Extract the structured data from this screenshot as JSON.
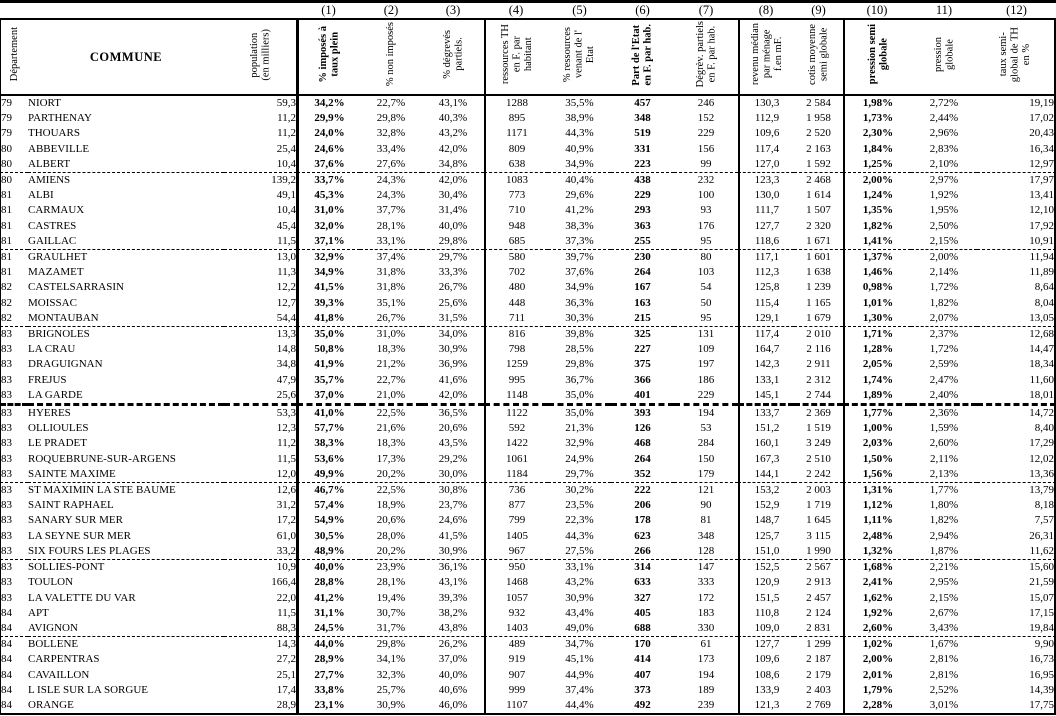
{
  "table": {
    "columns": [
      {
        "num": "",
        "label": "Département",
        "rot": true,
        "bold": false
      },
      {
        "num": "",
        "label": "COMMUNE",
        "rot": false,
        "bold": true
      },
      {
        "num": "",
        "label": "population\n(en milliers)",
        "rot": true,
        "bold": false
      },
      {
        "num": "(1)",
        "label": "% imposés à\ntaux plein",
        "rot": true,
        "bold": true
      },
      {
        "num": "(2)",
        "label": "% non imposés",
        "rot": true,
        "bold": false
      },
      {
        "num": "(3)",
        "label": "% dégrevés\npartiels.",
        "rot": true,
        "bold": false
      },
      {
        "num": "(4)",
        "label": "ressources TH\nen F. par\nhabitant",
        "rot": true,
        "bold": false
      },
      {
        "num": "(5)",
        "label": "% ressources\nvenant de l'\nEtat",
        "rot": true,
        "bold": false
      },
      {
        "num": "(6)",
        "label": "Part de l'Etat\nen F. par hab.",
        "rot": true,
        "bold": true
      },
      {
        "num": "(7)",
        "label": "Dégrèv. partiels\nen F. par hab.",
        "rot": true,
        "bold": false
      },
      {
        "num": "(8)",
        "label": "revenu médian\npar ménage\nf.en mF.",
        "rot": true,
        "bold": false
      },
      {
        "num": "(9)",
        "label": "cotis moyenne\nsemi globale",
        "rot": true,
        "bold": false
      },
      {
        "num": "(10)",
        "label": "pression semi\nglobale",
        "rot": true,
        "bold": true
      },
      {
        "num": "11)",
        "label": "pression\nglobale",
        "rot": true,
        "bold": false
      },
      {
        "num": "(12)",
        "label": "taux semi-\nglobal de TH\nen %",
        "rot": true,
        "bold": false
      }
    ],
    "bold_value_columns": [
      3,
      8,
      12
    ],
    "rows": [
      [
        "79",
        "NIORT",
        "59,3",
        "34,2%",
        "22,7%",
        "43,1%",
        "1288",
        "35,5%",
        "457",
        "246",
        "130,3",
        "2 584",
        "1,98%",
        "2,72%",
        "19,19"
      ],
      [
        "79",
        "PARTHENAY",
        "11,2",
        "29,9%",
        "29,8%",
        "40,3%",
        "895",
        "38,9%",
        "348",
        "152",
        "112,9",
        "1 958",
        "1,73%",
        "2,44%",
        "17,02"
      ],
      [
        "79",
        "THOUARS",
        "11,2",
        "24,0%",
        "32,8%",
        "43,2%",
        "1171",
        "44,3%",
        "519",
        "229",
        "109,6",
        "2 520",
        "2,30%",
        "2,96%",
        "20,43"
      ],
      [
        "80",
        "ABBEVILLE",
        "25,4",
        "24,6%",
        "33,4%",
        "42,0%",
        "809",
        "40,9%",
        "331",
        "156",
        "117,4",
        "2 163",
        "1,84%",
        "2,83%",
        "16,34"
      ],
      [
        "80",
        "ALBERT",
        "10,4",
        "37,6%",
        "27,6%",
        "34,8%",
        "638",
        "34,9%",
        "223",
        "99",
        "127,0",
        "1 592",
        "1,25%",
        "2,10%",
        "12,97"
      ],
      [
        "80",
        "AMIENS",
        "139,2",
        "33,7%",
        "24,3%",
        "42,0%",
        "1083",
        "40,4%",
        "438",
        "232",
        "123,3",
        "2 468",
        "2,00%",
        "2,97%",
        "17,97"
      ],
      [
        "81",
        "ALBI",
        "49,1",
        "45,3%",
        "24,3%",
        "30,4%",
        "773",
        "29,6%",
        "229",
        "100",
        "130,0",
        "1 614",
        "1,24%",
        "1,92%",
        "13,41"
      ],
      [
        "81",
        "CARMAUX",
        "10,4",
        "31,0%",
        "37,7%",
        "31,4%",
        "710",
        "41,2%",
        "293",
        "93",
        "111,7",
        "1 507",
        "1,35%",
        "1,95%",
        "12,10"
      ],
      [
        "81",
        "CASTRES",
        "45,4",
        "32,0%",
        "28,1%",
        "40,0%",
        "948",
        "38,3%",
        "363",
        "176",
        "127,7",
        "2 320",
        "1,82%",
        "2,50%",
        "17,92"
      ],
      [
        "81",
        "GAILLAC",
        "11,5",
        "37,1%",
        "33,1%",
        "29,8%",
        "685",
        "37,3%",
        "255",
        "95",
        "118,6",
        "1 671",
        "1,41%",
        "2,15%",
        "10,91"
      ],
      [
        "81",
        "GRAULHET",
        "13,0",
        "32,9%",
        "37,4%",
        "29,7%",
        "580",
        "39,7%",
        "230",
        "80",
        "117,1",
        "1 601",
        "1,37%",
        "2,00%",
        "11,94"
      ],
      [
        "81",
        "MAZAMET",
        "11,3",
        "34,9%",
        "31,8%",
        "33,3%",
        "702",
        "37,6%",
        "264",
        "103",
        "112,3",
        "1 638",
        "1,46%",
        "2,14%",
        "11,89"
      ],
      [
        "82",
        "CASTELSARRASIN",
        "12,2",
        "41,5%",
        "31,8%",
        "26,7%",
        "480",
        "34,9%",
        "167",
        "54",
        "125,8",
        "1 239",
        "0,98%",
        "1,72%",
        "8,64"
      ],
      [
        "82",
        "MOISSAC",
        "12,7",
        "39,3%",
        "35,1%",
        "25,6%",
        "448",
        "36,3%",
        "163",
        "50",
        "115,4",
        "1 165",
        "1,01%",
        "1,82%",
        "8,04"
      ],
      [
        "82",
        "MONTAUBAN",
        "54,4",
        "41,8%",
        "26,7%",
        "31,5%",
        "711",
        "30,3%",
        "215",
        "95",
        "129,1",
        "1 679",
        "1,30%",
        "2,07%",
        "13,05"
      ],
      [
        "83",
        "BRIGNOLES",
        "13,3",
        "35,0%",
        "31,0%",
        "34,0%",
        "816",
        "39,8%",
        "325",
        "131",
        "117,4",
        "2 010",
        "1,71%",
        "2,37%",
        "12,68"
      ],
      [
        "83",
        "LA CRAU",
        "14,8",
        "50,8%",
        "18,3%",
        "30,9%",
        "798",
        "28,5%",
        "227",
        "109",
        "164,7",
        "2 116",
        "1,28%",
        "1,72%",
        "14,47"
      ],
      [
        "83",
        "DRAGUIGNAN",
        "34,8",
        "41,9%",
        "21,2%",
        "36,9%",
        "1259",
        "29,8%",
        "375",
        "197",
        "142,3",
        "2 911",
        "2,05%",
        "2,59%",
        "18,34"
      ],
      [
        "83",
        "FREJUS",
        "47,9",
        "35,7%",
        "22,7%",
        "41,6%",
        "995",
        "36,7%",
        "366",
        "186",
        "133,1",
        "2 312",
        "1,74%",
        "2,47%",
        "11,60"
      ],
      [
        "83",
        "LA GARDE",
        "25,6",
        "37,0%",
        "21,0%",
        "42,0%",
        "1148",
        "35,0%",
        "401",
        "229",
        "145,1",
        "2 744",
        "1,89%",
        "2,40%",
        "18,01"
      ],
      [
        "83",
        "HYERES",
        "53,3",
        "41,0%",
        "22,5%",
        "36,5%",
        "1122",
        "35,0%",
        "393",
        "194",
        "133,7",
        "2 369",
        "1,77%",
        "2,36%",
        "14,72"
      ],
      [
        "83",
        "OLLIOULES",
        "12,3",
        "57,7%",
        "21,6%",
        "20,6%",
        "592",
        "21,3%",
        "126",
        "53",
        "151,2",
        "1 519",
        "1,00%",
        "1,59%",
        "8,40"
      ],
      [
        "83",
        "LE PRADET",
        "11,2",
        "38,3%",
        "18,3%",
        "43,5%",
        "1422",
        "32,9%",
        "468",
        "284",
        "160,1",
        "3 249",
        "2,03%",
        "2,60%",
        "17,29"
      ],
      [
        "83",
        "ROQUEBRUNE-SUR-ARGENS",
        "11,5",
        "53,6%",
        "17,3%",
        "29,2%",
        "1061",
        "24,9%",
        "264",
        "150",
        "167,3",
        "2 510",
        "1,50%",
        "2,11%",
        "12,02"
      ],
      [
        "83",
        "SAINTE MAXIME",
        "12,0",
        "49,9%",
        "20,2%",
        "30,0%",
        "1184",
        "29,7%",
        "352",
        "179",
        "144,1",
        "2 242",
        "1,56%",
        "2,13%",
        "13,36"
      ],
      [
        "83",
        "ST MAXIMIN LA STE BAUME",
        "12,6",
        "46,7%",
        "22,5%",
        "30,8%",
        "736",
        "30,2%",
        "222",
        "121",
        "153,2",
        "2 003",
        "1,31%",
        "1,77%",
        "13,79"
      ],
      [
        "83",
        "SAINT RAPHAEL",
        "31,2",
        "57,4%",
        "18,9%",
        "23,7%",
        "877",
        "23,5%",
        "206",
        "90",
        "152,9",
        "1 719",
        "1,12%",
        "1,80%",
        "8,18"
      ],
      [
        "83",
        "SANARY SUR MER",
        "17,2",
        "54,9%",
        "20,6%",
        "24,6%",
        "799",
        "22,3%",
        "178",
        "81",
        "148,7",
        "1 645",
        "1,11%",
        "1,82%",
        "7,57"
      ],
      [
        "83",
        "LA SEYNE SUR MER",
        "61,0",
        "30,5%",
        "28,0%",
        "41,5%",
        "1405",
        "44,3%",
        "623",
        "348",
        "125,7",
        "3 115",
        "2,48%",
        "2,94%",
        "26,31"
      ],
      [
        "83",
        "SIX FOURS LES PLAGES",
        "33,2",
        "48,9%",
        "20,2%",
        "30,9%",
        "967",
        "27,5%",
        "266",
        "128",
        "151,0",
        "1 990",
        "1,32%",
        "1,87%",
        "11,62"
      ],
      [
        "83",
        "SOLLIES-PONT",
        "10,9",
        "40,0%",
        "23,9%",
        "36,1%",
        "950",
        "33,1%",
        "314",
        "147",
        "152,5",
        "2 567",
        "1,68%",
        "2,21%",
        "15,60"
      ],
      [
        "83",
        "TOULON",
        "166,4",
        "28,8%",
        "28,1%",
        "43,1%",
        "1468",
        "43,2%",
        "633",
        "333",
        "120,9",
        "2 913",
        "2,41%",
        "2,95%",
        "21,59"
      ],
      [
        "83",
        "LA VALETTE DU VAR",
        "22,0",
        "41,2%",
        "19,4%",
        "39,3%",
        "1057",
        "30,9%",
        "327",
        "172",
        "151,5",
        "2 457",
        "1,62%",
        "2,15%",
        "15,07"
      ],
      [
        "84",
        "APT",
        "11,5",
        "31,1%",
        "30,7%",
        "38,2%",
        "932",
        "43,4%",
        "405",
        "183",
        "110,8",
        "2 124",
        "1,92%",
        "2,67%",
        "17,15"
      ],
      [
        "84",
        "AVIGNON",
        "88,3",
        "24,5%",
        "31,7%",
        "43,8%",
        "1403",
        "49,0%",
        "688",
        "330",
        "109,0",
        "2 831",
        "2,60%",
        "3,43%",
        "19,84"
      ],
      [
        "84",
        "BOLLENE",
        "14,3",
        "44,0%",
        "29,8%",
        "26,2%",
        "489",
        "34,7%",
        "170",
        "61",
        "127,7",
        "1 299",
        "1,02%",
        "1,67%",
        "9,90"
      ],
      [
        "84",
        "CARPENTRAS",
        "27,2",
        "28,9%",
        "34,1%",
        "37,0%",
        "919",
        "45,1%",
        "414",
        "173",
        "109,6",
        "2 187",
        "2,00%",
        "2,81%",
        "16,73"
      ],
      [
        "84",
        "CAVAILLON",
        "25,1",
        "27,7%",
        "32,3%",
        "40,0%",
        "907",
        "44,9%",
        "407",
        "194",
        "108,6",
        "2 179",
        "2,01%",
        "2,81%",
        "16,95"
      ],
      [
        "84",
        "L ISLE SUR LA SORGUE",
        "17,4",
        "33,8%",
        "25,7%",
        "40,6%",
        "999",
        "37,4%",
        "373",
        "189",
        "133,9",
        "2 403",
        "1,79%",
        "2,52%",
        "14,39"
      ],
      [
        "84",
        "ORANGE",
        "28,9",
        "23,1%",
        "30,9%",
        "46,0%",
        "1107",
        "44,4%",
        "492",
        "239",
        "121,3",
        "2 769",
        "2,28%",
        "3,01%",
        "17,75"
      ]
    ],
    "separators": {
      "dashed_after": [
        4,
        9,
        14,
        24,
        29,
        34
      ],
      "thick_dashed_after": [
        19
      ]
    }
  },
  "colors": {
    "ink": "#000000",
    "paper": "#ffffff"
  }
}
